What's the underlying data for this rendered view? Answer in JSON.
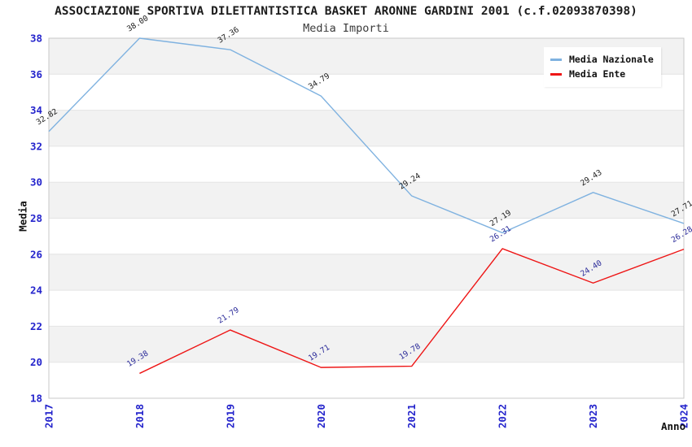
{
  "header": {
    "title": "ASSOCIAZIONE SPORTIVA DILETTANTISTICA BASKET ARONNE GARDINI 2001 (c.f.02093870398)",
    "subtitle": "Media Importi"
  },
  "legend": {
    "items": [
      {
        "label": "Media Nazionale",
        "color": "#7fb2e0"
      },
      {
        "label": "Media Ente",
        "color": "#ee1515"
      }
    ]
  },
  "chart_data": {
    "type": "line",
    "title": "Media Importi",
    "xlabel": "Anno",
    "ylabel": "Media",
    "x": [
      2017,
      2018,
      2019,
      2020,
      2021,
      2022,
      2023,
      2024
    ],
    "series": [
      {
        "name": "Media Nazionale",
        "color": "#7fb2e0",
        "label_color": "#1a1a1a",
        "values": [
          32.82,
          38.0,
          37.36,
          34.79,
          29.24,
          27.19,
          29.43,
          27.71
        ]
      },
      {
        "name": "Media Ente",
        "color": "#ee1515",
        "label_color": "#2a2a99",
        "values": [
          null,
          19.38,
          21.79,
          19.71,
          19.78,
          26.31,
          24.4,
          26.28
        ]
      }
    ],
    "ylim": [
      18,
      38
    ],
    "ytick_step": 2,
    "grid": true,
    "legend_position": "top-right",
    "tick_color": "#2424cc",
    "band_colors": [
      "#ffffff",
      "#f2f2f2"
    ],
    "gridline_color": "#e4e4e4",
    "border_color": "#c8c8c8"
  }
}
